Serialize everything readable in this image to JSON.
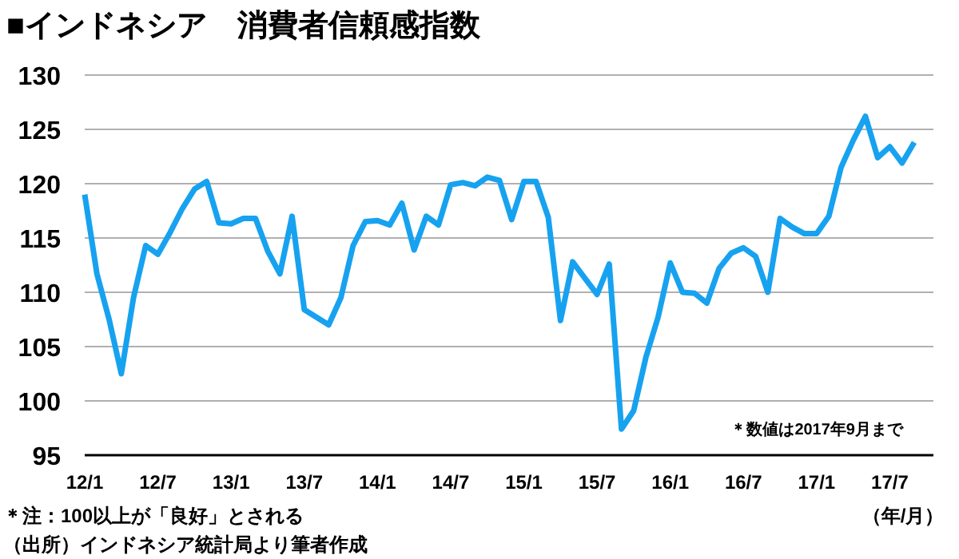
{
  "chart_data": {
    "type": "line",
    "title": "■インドネシア　消費者信頼感指数",
    "xlabel": "（年/月）",
    "categories": [
      "12/1",
      null,
      null,
      null,
      null,
      null,
      "12/7",
      null,
      null,
      null,
      null,
      null,
      "13/1",
      null,
      null,
      null,
      null,
      null,
      "13/7",
      null,
      null,
      null,
      null,
      null,
      "14/1",
      null,
      null,
      null,
      null,
      null,
      "14/7",
      null,
      null,
      null,
      null,
      null,
      "15/1",
      null,
      null,
      null,
      null,
      null,
      "15/7",
      null,
      null,
      null,
      null,
      null,
      "16/1",
      null,
      null,
      null,
      null,
      null,
      "16/7",
      null,
      null,
      null,
      null,
      null,
      "17/1",
      null,
      null,
      null,
      null,
      null,
      "17/7",
      null,
      null
    ],
    "series": [
      {
        "color": "#17a2f0",
        "values": [
          119,
          111.7,
          107.5,
          102.5,
          109.5,
          114.3,
          113.5,
          115.5,
          117.7,
          119.5,
          120.2,
          116.4,
          116.3,
          116.8,
          116.8,
          113.8,
          111.7,
          117.0,
          108.4,
          107.7,
          107.0,
          109.5,
          114.3,
          116.5,
          116.6,
          116.2,
          118.2,
          113.9,
          117.0,
          116.2,
          119.9,
          120.1,
          119.8,
          120.6,
          120.3,
          116.7,
          120.2,
          120.2,
          116.9,
          107.4,
          112.8,
          111.3,
          109.8,
          112.6,
          97.4,
          99.1,
          104.0,
          107.7,
          112.7,
          110.0,
          109.9,
          109.0,
          112.2,
          113.6,
          114.1,
          113.3,
          110.0,
          116.8,
          116.0,
          115.4,
          115.4,
          117.0,
          121.5,
          124.0,
          126.2,
          122.4,
          123.4,
          121.9,
          123.8
        ]
      }
    ],
    "ylim": [
      95,
      130
    ],
    "yticks": [
      95,
      100,
      105,
      110,
      115,
      120,
      125,
      130
    ],
    "grid": "y",
    "marker": "none",
    "line_style": "solid",
    "annotations": [
      {
        "text": "＊数値は2017年9月まで"
      },
      {
        "text": "＊注：100以上が「良好」とされる"
      },
      {
        "text": "（出所）インドネシア統計局より筆者作成"
      }
    ]
  }
}
